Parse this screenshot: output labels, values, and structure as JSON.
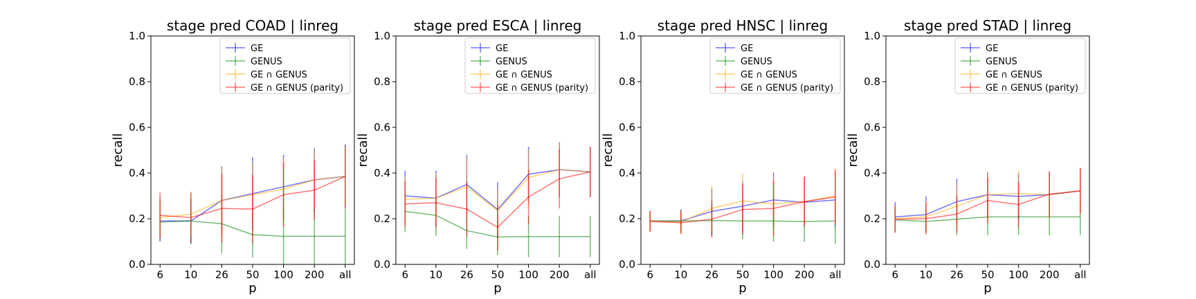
{
  "chart_data": [
    {
      "type": "line",
      "title": "stage pred COAD | linreg",
      "xlabel": "p",
      "ylabel": "recall",
      "categories": [
        "6",
        "10",
        "26",
        "50",
        "100",
        "200",
        "all"
      ],
      "ylim": [
        0,
        1
      ],
      "yticks": [
        "0.0",
        "0.2",
        "0.4",
        "0.6",
        "0.8",
        "1.0"
      ],
      "legend": "top-right",
      "series": [
        {
          "name": "GE",
          "color": "#0000ff",
          "values": [
            0.19,
            0.19,
            0.28,
            0.31,
            0.34,
            0.37,
            0.385
          ],
          "err": [
            0.09,
            0.1,
            0.15,
            0.16,
            0.14,
            0.14,
            0.14
          ]
        },
        {
          "name": "GENUS",
          "color": "#008000",
          "values": [
            0.185,
            0.19,
            0.178,
            0.13,
            0.123,
            0.123,
            0.123
          ],
          "err": [
            0.08,
            0.1,
            0.13,
            0.1,
            0.12,
            0.12,
            0.12
          ]
        },
        {
          "name": "GE ∩ GENUS",
          "color": "#ffa500",
          "values": [
            0.205,
            0.22,
            0.28,
            0.305,
            0.33,
            0.37,
            0.385
          ],
          "err": [
            0.09,
            0.1,
            0.15,
            0.14,
            0.14,
            0.13,
            0.13
          ]
        },
        {
          "name": "GE ∩ GENUS (parity)",
          "color": "#ff0000",
          "values": [
            0.215,
            0.205,
            0.245,
            0.242,
            0.305,
            0.325,
            0.385
          ],
          "err": [
            0.1,
            0.11,
            0.15,
            0.15,
            0.14,
            0.13,
            0.14
          ]
        }
      ]
    },
    {
      "type": "line",
      "title": "stage pred ESCA | linreg",
      "xlabel": "p",
      "ylabel": "recall",
      "categories": [
        "6",
        "10",
        "26",
        "50",
        "100",
        "200",
        "all"
      ],
      "ylim": [
        0,
        1
      ],
      "yticks": [
        "0.0",
        "0.2",
        "0.4",
        "0.6",
        "0.8",
        "1.0"
      ],
      "legend": "top-right",
      "series": [
        {
          "name": "GE",
          "color": "#0000ff",
          "values": [
            0.3,
            0.29,
            0.35,
            0.24,
            0.395,
            0.415,
            0.405
          ],
          "err": [
            0.11,
            0.12,
            0.13,
            0.12,
            0.12,
            0.12,
            0.11
          ]
        },
        {
          "name": "GENUS",
          "color": "#008000",
          "values": [
            0.232,
            0.215,
            0.148,
            0.12,
            0.122,
            0.122,
            0.122
          ],
          "err": [
            0.09,
            0.09,
            0.08,
            0.08,
            0.09,
            0.09,
            0.09
          ]
        },
        {
          "name": "GE ∩ GENUS",
          "color": "#ffa500",
          "values": [
            0.285,
            0.29,
            0.34,
            0.235,
            0.38,
            0.415,
            0.405
          ],
          "err": [
            0.1,
            0.11,
            0.13,
            0.1,
            0.12,
            0.12,
            0.11
          ]
        },
        {
          "name": "GE ∩ GENUS (parity)",
          "color": "#ff0000",
          "values": [
            0.265,
            0.27,
            0.242,
            0.162,
            0.295,
            0.375,
            0.405
          ],
          "err": [
            0.1,
            0.11,
            0.12,
            0.1,
            0.12,
            0.13,
            0.11
          ]
        }
      ]
    },
    {
      "type": "line",
      "title": "stage pred HNSC | linreg",
      "xlabel": "p",
      "ylabel": "recall",
      "categories": [
        "6",
        "10",
        "26",
        "50",
        "100",
        "200",
        "all"
      ],
      "ylim": [
        0,
        1
      ],
      "yticks": [
        "0.0",
        "0.2",
        "0.4",
        "0.6",
        "0.8",
        "1.0"
      ],
      "legend": "top-right",
      "series": [
        {
          "name": "GE",
          "color": "#0000ff",
          "values": [
            0.19,
            0.19,
            0.232,
            0.255,
            0.282,
            0.272,
            0.282
          ],
          "err": [
            0.045,
            0.05,
            0.1,
            0.11,
            0.12,
            0.11,
            0.12
          ]
        },
        {
          "name": "GENUS",
          "color": "#008000",
          "values": [
            0.19,
            0.19,
            0.192,
            0.19,
            0.19,
            0.188,
            0.19
          ],
          "err": [
            0.045,
            0.05,
            0.07,
            0.08,
            0.09,
            0.09,
            0.1
          ]
        },
        {
          "name": "GE ∩ GENUS",
          "color": "#ffa500",
          "values": [
            0.19,
            0.185,
            0.245,
            0.278,
            0.265,
            0.275,
            0.3
          ],
          "err": [
            0.045,
            0.05,
            0.1,
            0.12,
            0.12,
            0.11,
            0.12
          ]
        },
        {
          "name": "GE ∩ GENUS (parity)",
          "color": "#ff0000",
          "values": [
            0.188,
            0.182,
            0.198,
            0.24,
            0.245,
            0.275,
            0.295
          ],
          "err": [
            0.045,
            0.05,
            0.08,
            0.11,
            0.12,
            0.11,
            0.12
          ]
        }
      ]
    },
    {
      "type": "line",
      "title": "stage pred STAD | linreg",
      "xlabel": "p",
      "ylabel": "recall",
      "categories": [
        "6",
        "10",
        "26",
        "50",
        "100",
        "200",
        "all"
      ],
      "ylim": [
        0,
        1
      ],
      "yticks": [
        "0.0",
        "0.2",
        "0.4",
        "0.6",
        "0.8",
        "1.0"
      ],
      "legend": "top-right",
      "series": [
        {
          "name": "GE",
          "color": "#0000ff",
          "values": [
            0.208,
            0.218,
            0.275,
            0.305,
            0.298,
            0.305,
            0.322
          ],
          "err": [
            0.065,
            0.08,
            0.1,
            0.1,
            0.1,
            0.1,
            0.1
          ]
        },
        {
          "name": "GENUS",
          "color": "#008000",
          "values": [
            0.195,
            0.188,
            0.198,
            0.208,
            0.208,
            0.208,
            0.208
          ],
          "err": [
            0.05,
            0.05,
            0.07,
            0.08,
            0.08,
            0.08,
            0.08
          ]
        },
        {
          "name": "GE ∩ GENUS",
          "color": "#ffa500",
          "values": [
            0.2,
            0.208,
            0.255,
            0.305,
            0.31,
            0.305,
            0.322
          ],
          "err": [
            0.06,
            0.07,
            0.1,
            0.1,
            0.1,
            0.1,
            0.1
          ]
        },
        {
          "name": "GE ∩ GENUS (parity)",
          "color": "#ff0000",
          "values": [
            0.198,
            0.2,
            0.22,
            0.28,
            0.262,
            0.308,
            0.322
          ],
          "err": [
            0.06,
            0.07,
            0.08,
            0.1,
            0.1,
            0.1,
            0.1
          ]
        }
      ]
    }
  ]
}
